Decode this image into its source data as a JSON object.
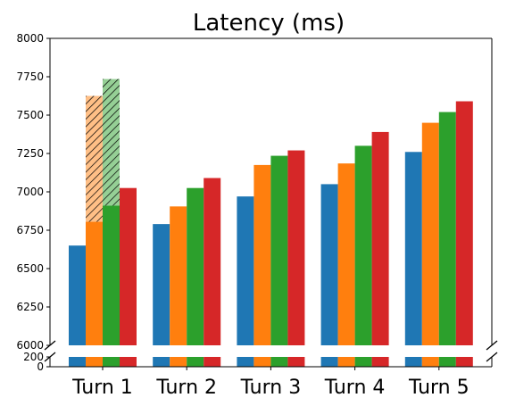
{
  "chart_data": {
    "type": "bar",
    "title": "Latency (ms)",
    "xlabel": "",
    "ylabel": "",
    "categories": [
      "Turn 1",
      "Turn 2",
      "Turn 3",
      "Turn 4",
      "Turn 5"
    ],
    "broken_y_axis": true,
    "ylim_top": [
      6000,
      8000
    ],
    "ylim_bottom": [
      0,
      200
    ],
    "yticks_top": [
      "8000",
      "7750",
      "7500",
      "7250",
      "7000",
      "6750",
      "6500",
      "6250",
      "6000"
    ],
    "yticks_bottom": [
      "200",
      "0"
    ],
    "grid": false,
    "legend": "none",
    "series": [
      {
        "color": "#1f77b4",
        "values": [
          6650,
          6790,
          6970,
          7050,
          7260
        ],
        "hatched_extension": [
          null,
          null,
          null,
          null,
          null
        ]
      },
      {
        "color": "#ff7f0e",
        "values": [
          6805,
          6905,
          7175,
          7185,
          7450
        ],
        "hatched_extension": [
          7625,
          null,
          null,
          null,
          null
        ]
      },
      {
        "color": "#2ca02c",
        "values": [
          6910,
          7025,
          7235,
          7300,
          7520
        ],
        "hatched_extension": [
          7735,
          null,
          null,
          null,
          null
        ]
      },
      {
        "color": "#d62728",
        "values": [
          7025,
          7090,
          7270,
          7390,
          7590
        ],
        "hatched_extension": [
          null,
          null,
          null,
          null,
          null
        ]
      }
    ],
    "hatch_fill_colors": {
      "#ff7f0e": "#ffbf86",
      "#2ca02c": "#95cf95"
    }
  }
}
